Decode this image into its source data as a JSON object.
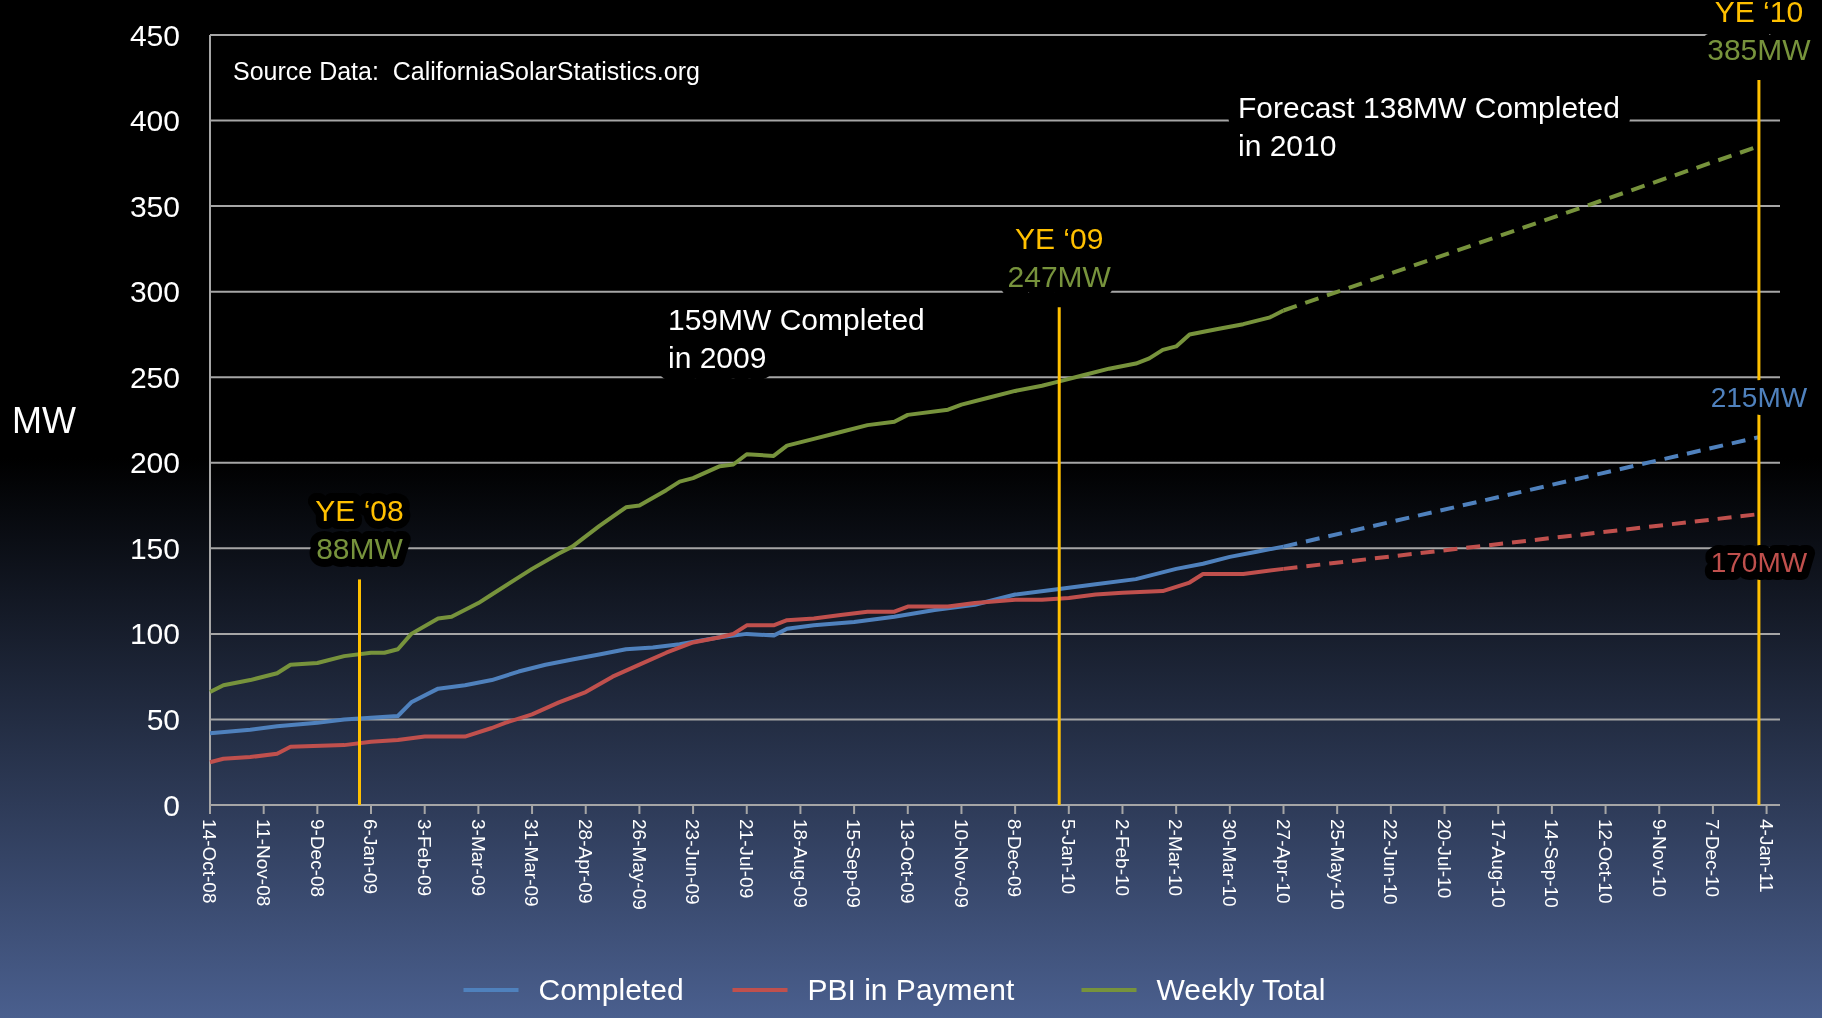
{
  "chart_data": {
    "type": "line",
    "ylabel": "MW",
    "xlim": [
      "2008-10-14",
      "2011-01-11"
    ],
    "ylim": [
      0,
      450
    ],
    "yticks": [
      0,
      50,
      100,
      150,
      200,
      250,
      300,
      350,
      400,
      450
    ],
    "xticks": [
      {
        "value": "2008-10-14",
        "label": "14-Oct-08"
      },
      {
        "value": "2008-11-11",
        "label": "11-Nov-08"
      },
      {
        "value": "2008-12-09",
        "label": "9-Dec-08"
      },
      {
        "value": "2009-01-06",
        "label": "6-Jan-09"
      },
      {
        "value": "2009-02-03",
        "label": "3-Feb-09"
      },
      {
        "value": "2009-03-03",
        "label": "3-Mar-09"
      },
      {
        "value": "2009-03-31",
        "label": "31-Mar-09"
      },
      {
        "value": "2009-04-28",
        "label": "28-Apr-09"
      },
      {
        "value": "2009-05-26",
        "label": "26-May-09"
      },
      {
        "value": "2009-06-23",
        "label": "23-Jun-09"
      },
      {
        "value": "2009-07-21",
        "label": "21-Jul-09"
      },
      {
        "value": "2009-08-18",
        "label": "18-Aug-09"
      },
      {
        "value": "2009-09-15",
        "label": "15-Sep-09"
      },
      {
        "value": "2009-10-13",
        "label": "13-Oct-09"
      },
      {
        "value": "2009-11-10",
        "label": "10-Nov-09"
      },
      {
        "value": "2009-12-08",
        "label": "8-Dec-09"
      },
      {
        "value": "2010-01-05",
        "label": "5-Jan-10"
      },
      {
        "value": "2010-02-02",
        "label": "2-Feb-10"
      },
      {
        "value": "2010-03-02",
        "label": "2-Mar-10"
      },
      {
        "value": "2010-03-30",
        "label": "30-Mar-10"
      },
      {
        "value": "2010-04-27",
        "label": "27-Apr-10"
      },
      {
        "value": "2010-05-25",
        "label": "25-May-10"
      },
      {
        "value": "2010-06-22",
        "label": "22-Jun-10"
      },
      {
        "value": "2010-07-20",
        "label": "20-Jul-10"
      },
      {
        "value": "2010-08-17",
        "label": "17-Aug-10"
      },
      {
        "value": "2010-09-14",
        "label": "14-Sep-10"
      },
      {
        "value": "2010-10-12",
        "label": "12-Oct-10"
      },
      {
        "value": "2010-11-09",
        "label": "9-Nov-10"
      },
      {
        "value": "2010-12-07",
        "label": "7-Dec-10"
      },
      {
        "value": "2011-01-04",
        "label": "4-Jan-11"
      }
    ],
    "grid": "y",
    "legend": "bottom",
    "line_style": "solid",
    "series": [
      {
        "name": "Completed",
        "color": "#4f81bd",
        "x": [
          "2008-10-14",
          "2008-11-04",
          "2008-11-18",
          "2008-12-09",
          "2008-12-23",
          "2009-01-06",
          "2009-01-20",
          "2009-01-27",
          "2009-02-10",
          "2009-02-24",
          "2009-03-10",
          "2009-03-24",
          "2009-04-07",
          "2009-04-21",
          "2009-05-05",
          "2009-05-19",
          "2009-06-02",
          "2009-06-16",
          "2009-07-07",
          "2009-07-21",
          "2009-08-04",
          "2009-08-11",
          "2009-08-25",
          "2009-09-15",
          "2009-10-06",
          "2009-10-27",
          "2009-11-17",
          "2009-12-08",
          "2009-12-29",
          "2010-01-19",
          "2010-02-09",
          "2010-03-02",
          "2010-03-16",
          "2010-03-30",
          "2010-04-13",
          "2010-04-27"
        ],
        "values": [
          42,
          44,
          46,
          48,
          50,
          51,
          52,
          60,
          68,
          70,
          73,
          78,
          82,
          85,
          88,
          91,
          92,
          94,
          98,
          100,
          99,
          103,
          105,
          107,
          110,
          114,
          117,
          123,
          126,
          129,
          132,
          138,
          141,
          145,
          148,
          151
        ]
      },
      {
        "name": "PBI in Payment",
        "color": "#c0504d",
        "x": [
          "2008-10-14",
          "2008-10-21",
          "2008-11-04",
          "2008-11-18",
          "2008-11-25",
          "2008-12-23",
          "2009-01-06",
          "2009-01-20",
          "2009-02-03",
          "2009-02-24",
          "2009-03-10",
          "2009-03-17",
          "2009-03-31",
          "2009-04-14",
          "2009-04-28",
          "2009-05-12",
          "2009-05-26",
          "2009-06-09",
          "2009-06-23",
          "2009-07-07",
          "2009-07-14",
          "2009-07-21",
          "2009-08-04",
          "2009-08-11",
          "2009-08-25",
          "2009-09-08",
          "2009-09-22",
          "2009-10-06",
          "2009-10-13",
          "2009-11-03",
          "2009-11-17",
          "2009-12-08",
          "2009-12-22",
          "2010-01-05",
          "2010-01-19",
          "2010-02-02",
          "2010-02-23",
          "2010-03-09",
          "2010-03-16",
          "2010-04-06",
          "2010-04-13",
          "2010-04-27"
        ],
        "values": [
          25,
          27,
          28,
          30,
          34,
          35,
          37,
          38,
          40,
          40,
          45,
          48,
          53,
          60,
          66,
          75,
          82,
          89,
          95,
          98,
          100,
          105,
          105,
          108,
          109,
          111,
          113,
          113,
          116,
          116,
          118,
          120,
          120,
          121,
          123,
          124,
          125,
          130,
          135,
          135,
          136,
          138
        ]
      },
      {
        "name": "Weekly Total",
        "color": "#77933c",
        "x": [
          "2008-10-14",
          "2008-10-21",
          "2008-11-04",
          "2008-11-18",
          "2008-11-25",
          "2008-12-09",
          "2008-12-23",
          "2009-01-06",
          "2009-01-13",
          "2009-01-20",
          "2009-01-27",
          "2009-02-10",
          "2009-02-17",
          "2009-03-03",
          "2009-03-10",
          "2009-03-24",
          "2009-03-31",
          "2009-04-14",
          "2009-04-21",
          "2009-05-05",
          "2009-05-19",
          "2009-05-26",
          "2009-06-09",
          "2009-06-16",
          "2009-06-23",
          "2009-07-07",
          "2009-07-14",
          "2009-07-21",
          "2009-08-04",
          "2009-08-11",
          "2009-08-25",
          "2009-09-08",
          "2009-09-22",
          "2009-10-06",
          "2009-10-13",
          "2009-11-03",
          "2009-11-10",
          "2009-11-24",
          "2009-12-08",
          "2009-12-22",
          "2009-12-29",
          "2010-01-12",
          "2010-01-26",
          "2010-02-09",
          "2010-02-16",
          "2010-02-23",
          "2010-03-02",
          "2010-03-09",
          "2010-03-23",
          "2010-04-06",
          "2010-04-20",
          "2010-04-27"
        ],
        "values": [
          66,
          70,
          73,
          77,
          82,
          83,
          87,
          89,
          89,
          91,
          100,
          109,
          110,
          118,
          123,
          133,
          138,
          147,
          151,
          163,
          174,
          175,
          184,
          189,
          191,
          198,
          199,
          205,
          204,
          210,
          214,
          218,
          222,
          224,
          228,
          231,
          234,
          238,
          242,
          245,
          247,
          251,
          255,
          258,
          261,
          266,
          268,
          275,
          278,
          281,
          285,
          289
        ]
      },
      {
        "color": "#4f81bd",
        "line_style": "dashed",
        "x": [
          "2010-04-27",
          "2010-12-31"
        ],
        "values": [
          151,
          215
        ]
      },
      {
        "color": "#c0504d",
        "line_style": "dashed",
        "x": [
          "2010-04-27",
          "2010-12-31"
        ],
        "values": [
          138,
          170
        ]
      },
      {
        "color": "#77933c",
        "line_style": "dashed",
        "x": [
          "2010-04-27",
          "2010-12-31"
        ],
        "values": [
          289,
          385
        ]
      }
    ],
    "ref_lines": [
      {
        "axis": "x",
        "value": "2008-12-31",
        "label": "YE ‘08",
        "color": "#ffc000"
      },
      {
        "axis": "x",
        "value": "2009-12-31",
        "label": "YE ‘09",
        "color": "#ffc000"
      },
      {
        "axis": "x",
        "value": "2010-12-31",
        "label": "YE ‘10",
        "color": "#ffc000"
      }
    ],
    "annotations": [
      "Source Data:  CaliforniaSolarStatistics.org",
      "159MW Completed\nin 2009",
      "Forecast 138MW Completed\nin 2010",
      {
        "text": "88MW",
        "x": "2008-12-31",
        "y": 88
      },
      {
        "text": "247MW",
        "x": "2009-12-31",
        "y": 247
      },
      {
        "text": "385MW",
        "x": "2010-12-31",
        "y": 385
      },
      {
        "text": "215MW",
        "x": "2010-12-31",
        "y": 215
      },
      {
        "text": "170MW",
        "x": "2010-12-31",
        "y": 170
      }
    ]
  }
}
